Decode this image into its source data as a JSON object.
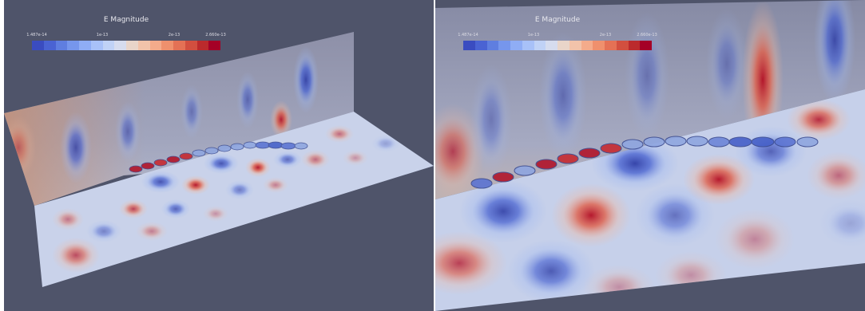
{
  "views": [
    {
      "id": "left",
      "legend": {
        "title": "E Magnitude",
        "ticks": [
          "1.487e-14",
          "1e-13",
          "2e-13",
          "2.660e-13"
        ]
      }
    },
    {
      "id": "right",
      "legend": {
        "title": "E Magnitude",
        "ticks": [
          "1.487e-14",
          "1e-13",
          "2e-13",
          "2.660e-13"
        ]
      }
    }
  ],
  "colors": {
    "background": "#4f546a",
    "colormap": [
      "#3a4cc0",
      "#4a63d3",
      "#5f7ee0",
      "#7696ec",
      "#8fadf5",
      "#a8c1f8",
      "#c0d2f6",
      "#d6dcee",
      "#e9d5c9",
      "#f2c3aa",
      "#f4ab8b",
      "#ef906d",
      "#e47155",
      "#d24f3f",
      "#bb2a2c",
      "#a50026"
    ]
  }
}
